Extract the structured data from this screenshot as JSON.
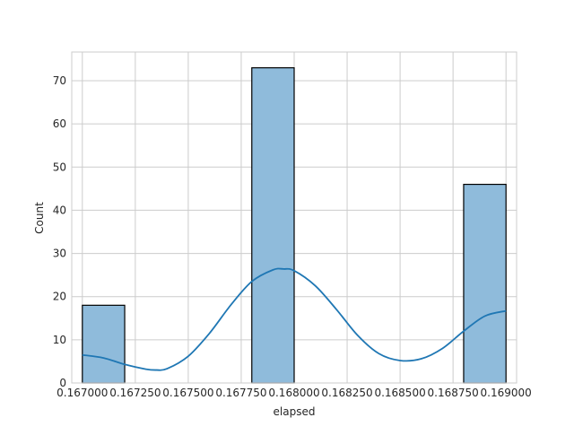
{
  "chart_data": {
    "type": "bar",
    "xlabel": "elapsed",
    "ylabel": "Count",
    "xlim": [
      0.16695,
      0.16905
    ],
    "ylim": [
      0,
      76.65
    ],
    "x_ticks": [
      0.167,
      0.16725,
      0.1675,
      0.16775,
      0.168,
      0.16825,
      0.1685,
      0.16875,
      0.169
    ],
    "x_tick_labels": [
      "0.167000",
      "0.167250",
      "0.167500",
      "0.167750",
      "0.168000",
      "0.168250",
      "0.168500",
      "0.168750",
      "0.169000"
    ],
    "y_ticks": [
      0,
      10,
      20,
      30,
      40,
      50,
      60,
      70
    ],
    "y_tick_labels": [
      "0",
      "10",
      "20",
      "30",
      "40",
      "50",
      "60",
      "70"
    ],
    "grid": true,
    "bins": [
      {
        "start": 0.167,
        "end": 0.1672,
        "count": 18
      },
      {
        "start": 0.1672,
        "end": 0.1674,
        "count": 0
      },
      {
        "start": 0.1674,
        "end": 0.1676,
        "count": 0
      },
      {
        "start": 0.1676,
        "end": 0.1678,
        "count": 0
      },
      {
        "start": 0.1678,
        "end": 0.168,
        "count": 73
      },
      {
        "start": 0.168,
        "end": 0.1682,
        "count": 0
      },
      {
        "start": 0.1682,
        "end": 0.1684,
        "count": 0
      },
      {
        "start": 0.1684,
        "end": 0.1686,
        "count": 0
      },
      {
        "start": 0.1686,
        "end": 0.1688,
        "count": 0
      },
      {
        "start": 0.1688,
        "end": 0.169,
        "count": 46
      }
    ],
    "kde": {
      "x": [
        0.167,
        0.1671,
        0.1672,
        0.1673,
        0.16735,
        0.1674,
        0.1675,
        0.1676,
        0.1677,
        0.1678,
        0.1679,
        0.16795,
        0.168,
        0.1681,
        0.1682,
        0.1683,
        0.1684,
        0.1685,
        0.1686,
        0.1687,
        0.1688,
        0.1689,
        0.169
      ],
      "y": [
        6.5,
        5.8,
        4.3,
        3.2,
        3.0,
        3.3,
        6.2,
        11.5,
        18.0,
        23.5,
        26.2,
        26.4,
        26.0,
        22.5,
        17.0,
        11.0,
        6.8,
        5.2,
        5.6,
        8.0,
        12.0,
        15.5,
        16.7
      ]
    },
    "colors": {
      "bar_fill": "#8fbbdb",
      "bar_edge": "#000000",
      "kde_line": "#1f77b4",
      "grid": "#cccccc",
      "frame": "#cccccc"
    }
  }
}
